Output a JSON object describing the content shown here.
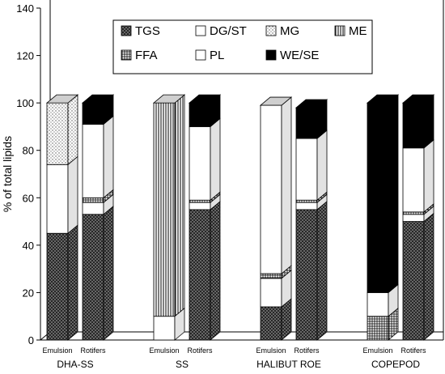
{
  "chart_data": {
    "type": "bar",
    "stacked": true,
    "style": "3d",
    "ylabel": "% of total lipids",
    "ylim": [
      0,
      140
    ],
    "yticks": [
      0,
      20,
      40,
      60,
      80,
      100,
      120,
      140
    ],
    "groups": [
      "DHA-SS",
      "SS",
      "HALIBUT ROE",
      "COPEPOD"
    ],
    "bar_labels": [
      "Emulsion",
      "Rotifers"
    ],
    "legend_position": "top-center",
    "legend_labels": [
      "TGS",
      "DG/ST",
      "MG",
      "ME",
      "FFA",
      "PL",
      "WE/SE"
    ],
    "series": [
      {
        "name": "TGS",
        "pattern": "crosshatch-dark",
        "values": [
          45,
          53,
          0,
          55,
          14,
          55,
          0,
          50
        ]
      },
      {
        "name": "DG/ST",
        "pattern": "white",
        "values": [
          29,
          5,
          10,
          3,
          12,
          3,
          0,
          3
        ]
      },
      {
        "name": "MG",
        "pattern": "dots",
        "values": [
          26,
          0,
          0,
          0,
          0,
          0,
          0,
          0
        ]
      },
      {
        "name": "ME",
        "pattern": "vertical-lines",
        "values": [
          0,
          0,
          90,
          0,
          0,
          0,
          0,
          0
        ]
      },
      {
        "name": "FFA",
        "pattern": "grid",
        "values": [
          0,
          2,
          0,
          1,
          2,
          1,
          10,
          1
        ]
      },
      {
        "name": "PL",
        "pattern": "white",
        "values": [
          0,
          31,
          0,
          31,
          71,
          26,
          10,
          27
        ]
      },
      {
        "name": "WE/SE",
        "pattern": "black",
        "values": [
          0,
          9,
          0,
          10,
          0,
          13,
          80,
          19
        ]
      }
    ]
  }
}
